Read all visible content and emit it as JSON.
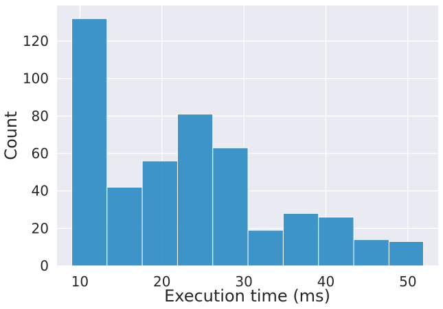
{
  "chart_data": {
    "type": "histogram",
    "title": "",
    "xlabel": "Execution time (ms)",
    "ylabel": "Count",
    "xlim": [
      7.2,
      53.7
    ],
    "ylim": [
      0,
      139
    ],
    "x_ticks": [
      10,
      20,
      30,
      40,
      50
    ],
    "y_ticks": [
      0,
      20,
      40,
      60,
      80,
      100,
      120
    ],
    "grid": true,
    "background_color": "#EAEAF2",
    "bar_color": "#2A8BC3",
    "bins": [
      {
        "x0": 9.0,
        "x1": 13.3,
        "count": 132
      },
      {
        "x0": 13.3,
        "x1": 17.6,
        "count": 42
      },
      {
        "x0": 17.6,
        "x1": 21.9,
        "count": 56
      },
      {
        "x0": 21.9,
        "x1": 26.2,
        "count": 81
      },
      {
        "x0": 26.2,
        "x1": 30.5,
        "count": 63
      },
      {
        "x0": 30.5,
        "x1": 34.8,
        "count": 19
      },
      {
        "x0": 34.8,
        "x1": 39.1,
        "count": 28
      },
      {
        "x0": 39.1,
        "x1": 43.4,
        "count": 26
      },
      {
        "x0": 43.4,
        "x1": 47.7,
        "count": 14
      },
      {
        "x0": 47.7,
        "x1": 51.9,
        "count": 13
      }
    ]
  }
}
